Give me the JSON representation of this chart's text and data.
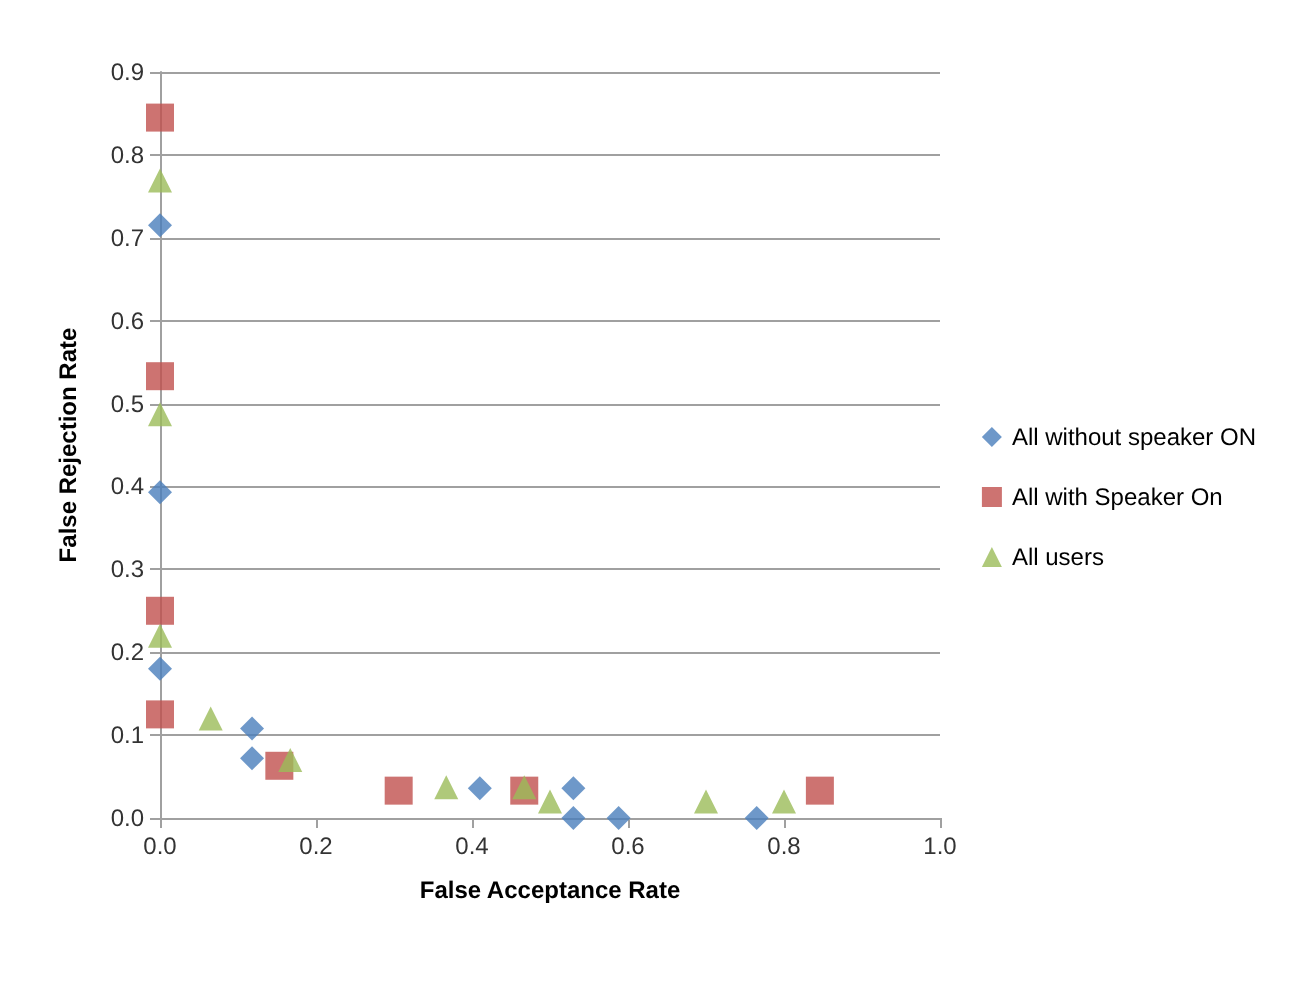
{
  "chart_data": {
    "type": "scatter",
    "xlabel": "False Acceptance Rate",
    "ylabel": "False Rejection Rate",
    "xlim": [
      0,
      1
    ],
    "ylim": [
      0,
      0.9
    ],
    "xticks": [
      {
        "value": 0,
        "label": "0.0"
      },
      {
        "value": 0.2,
        "label": "0.2"
      },
      {
        "value": 0.4,
        "label": "0.4"
      },
      {
        "value": 0.6,
        "label": "0.6"
      },
      {
        "value": 0.8,
        "label": "0.8"
      },
      {
        "value": 1,
        "label": "1.0"
      }
    ],
    "yticks": [
      {
        "value": 0,
        "label": "0.0"
      },
      {
        "value": 0.1,
        "label": "0.1"
      },
      {
        "value": 0.2,
        "label": "0.2"
      },
      {
        "value": 0.3,
        "label": "0.3"
      },
      {
        "value": 0.4,
        "label": "0.4"
      },
      {
        "value": 0.5,
        "label": "0.5"
      },
      {
        "value": 0.6,
        "label": "0.6"
      },
      {
        "value": 0.7,
        "label": "0.7"
      },
      {
        "value": 0.8,
        "label": "0.8"
      },
      {
        "value": 0.9,
        "label": "0.9"
      }
    ],
    "grid": "y",
    "legend": "right",
    "series": [
      {
        "name": "All without speaker ON",
        "color": "#4a7ebb",
        "marker": "diamond",
        "x": [
          0,
          0,
          0,
          0.118,
          0.118,
          0.41,
          0.53,
          0.53,
          0.588,
          0.765
        ],
        "values": [
          0.715,
          0.393,
          0.18,
          0.108,
          0.072,
          0.036,
          0.036,
          0,
          0,
          0
        ]
      },
      {
        "name": "All with Speaker On",
        "color": "#c0504d",
        "marker": "square",
        "x": [
          0,
          0,
          0,
          0,
          0.153,
          0.306,
          0.467,
          0.846
        ],
        "values": [
          0.845,
          0.533,
          0.25,
          0.125,
          0.063,
          0.033,
          0.033,
          0.033
        ]
      },
      {
        "name": "All users",
        "color": "#9bbb59",
        "marker": "triangle",
        "x": [
          0,
          0,
          0,
          0.065,
          0.167,
          0.367,
          0.467,
          0.5,
          0.7,
          0.8
        ],
        "values": [
          0.769,
          0.487,
          0.22,
          0.12,
          0.07,
          0.037,
          0.037,
          0.02,
          0.02,
          0.02
        ]
      }
    ]
  }
}
